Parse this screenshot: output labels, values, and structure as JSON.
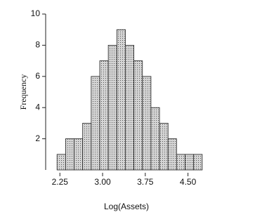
{
  "chart_data": {
    "type": "histogram",
    "x_label": "Log(Assets)",
    "y_label": "Frequency",
    "bins": [
      2.2,
      2.35,
      2.5,
      2.65,
      2.8,
      2.95,
      3.1,
      3.25,
      3.4,
      3.55,
      3.7,
      3.85,
      4.0,
      4.15,
      4.3,
      4.45,
      4.6,
      4.75
    ],
    "counts": [
      1,
      2,
      2,
      3,
      6,
      7,
      8,
      9,
      8,
      7,
      6,
      4,
      3,
      2,
      1,
      1,
      1
    ],
    "color": "#d4d4d4",
    "xlim": [
      2.0,
      4.9
    ],
    "xticks": [
      2.25,
      {
        "value": 3.0,
        "label": "3.00"
      },
      3.75,
      {
        "value": 4.5,
        "label": "4.50"
      }
    ],
    "ylim": [
      0,
      10
    ],
    "yticks": [
      2,
      4,
      6,
      8,
      10
    ]
  }
}
